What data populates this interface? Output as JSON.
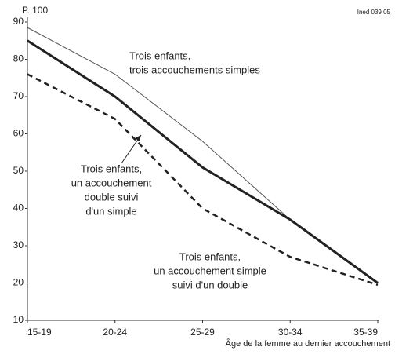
{
  "chart_data": {
    "type": "line",
    "y_label": "P. 100",
    "source": "Ined 039 05",
    "x_label": "Âge de la femme au dernier accouchement",
    "categories": [
      "15-19",
      "20-24",
      "25-29",
      "30-34",
      "35-39"
    ],
    "ylim": [
      10,
      90
    ],
    "yticks": [
      10,
      20,
      30,
      40,
      50,
      60,
      70,
      80,
      90
    ],
    "series": [
      {
        "color": "#555555",
        "style": "thin",
        "values": [
          88.5,
          76,
          58,
          37,
          20
        ]
      },
      {
        "color": "#222222",
        "style": "thick",
        "values": [
          85,
          70,
          51,
          37,
          20
        ]
      },
      {
        "color": "#222222",
        "style": "dashed",
        "values": [
          76,
          64,
          40,
          27,
          19.5
        ]
      }
    ],
    "annotations": [
      {
        "lines": [
          "Trois enfants,",
          "trois accouchements simples"
        ]
      },
      {
        "lines": [
          "Trois enfants,",
          "un accouchement",
          "double suivi",
          "d'un simple"
        ]
      },
      {
        "lines": [
          "Trois enfants,",
          "un accouchement simple",
          "suivi d'un double"
        ]
      }
    ]
  }
}
